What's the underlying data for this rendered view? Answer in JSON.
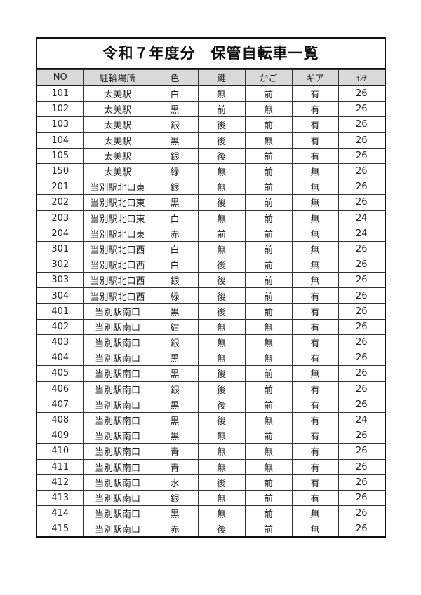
{
  "title": "令和７年度分　保管自転車一覧",
  "table": {
    "headers": [
      "NO",
      "駐輪場所",
      "色",
      "鍵",
      "かご",
      "ギア",
      "ｲﾝﾁ"
    ],
    "rows": [
      [
        "101",
        "太美駅",
        "白",
        "無",
        "前",
        "有",
        "26"
      ],
      [
        "102",
        "太美駅",
        "黒",
        "前",
        "無",
        "有",
        "26"
      ],
      [
        "103",
        "太美駅",
        "銀",
        "後",
        "前",
        "有",
        "26"
      ],
      [
        "104",
        "太美駅",
        "黒",
        "後",
        "無",
        "有",
        "26"
      ],
      [
        "105",
        "太美駅",
        "銀",
        "後",
        "前",
        "有",
        "26"
      ],
      [
        "150",
        "太美駅",
        "緑",
        "無",
        "前",
        "無",
        "26"
      ],
      [
        "201",
        "当別駅北口東",
        "銀",
        "無",
        "前",
        "無",
        "26"
      ],
      [
        "202",
        "当別駅北口東",
        "黒",
        "後",
        "前",
        "無",
        "26"
      ],
      [
        "203",
        "当別駅北口東",
        "白",
        "無",
        "前",
        "無",
        "24"
      ],
      [
        "204",
        "当別駅北口東",
        "赤",
        "前",
        "前",
        "無",
        "24"
      ],
      [
        "301",
        "当別駅北口西",
        "白",
        "無",
        "前",
        "無",
        "26"
      ],
      [
        "302",
        "当別駅北口西",
        "白",
        "後",
        "前",
        "無",
        "26"
      ],
      [
        "303",
        "当別駅北口西",
        "銀",
        "後",
        "前",
        "無",
        "26"
      ],
      [
        "304",
        "当別駅北口西",
        "緑",
        "後",
        "前",
        "有",
        "26"
      ],
      [
        "401",
        "当別駅南口",
        "黒",
        "後",
        "前",
        "有",
        "26"
      ],
      [
        "402",
        "当別駅南口",
        "紺",
        "無",
        "無",
        "有",
        "26"
      ],
      [
        "403",
        "当別駅南口",
        "銀",
        "無",
        "無",
        "有",
        "26"
      ],
      [
        "404",
        "当別駅南口",
        "黒",
        "無",
        "無",
        "有",
        "26"
      ],
      [
        "405",
        "当別駅南口",
        "黒",
        "後",
        "前",
        "無",
        "26"
      ],
      [
        "406",
        "当別駅南口",
        "銀",
        "後",
        "前",
        "有",
        "26"
      ],
      [
        "407",
        "当別駅南口",
        "黒",
        "後",
        "前",
        "有",
        "26"
      ],
      [
        "408",
        "当別駅南口",
        "黒",
        "後",
        "無",
        "有",
        "24"
      ],
      [
        "409",
        "当別駅南口",
        "黒",
        "無",
        "前",
        "有",
        "26"
      ],
      [
        "410",
        "当別駅南口",
        "青",
        "無",
        "無",
        "有",
        "26"
      ],
      [
        "411",
        "当別駅南口",
        "青",
        "無",
        "無",
        "有",
        "26"
      ],
      [
        "412",
        "当別駅南口",
        "水",
        "後",
        "前",
        "有",
        "26"
      ],
      [
        "413",
        "当別駅南口",
        "銀",
        "無",
        "前",
        "有",
        "26"
      ],
      [
        "414",
        "当別駅南口",
        "黒",
        "無",
        "前",
        "無",
        "26"
      ],
      [
        "415",
        "当別駅南口",
        "赤",
        "後",
        "前",
        "無",
        "26"
      ]
    ]
  },
  "colors": {
    "header_bg": "#d9d9d9",
    "border": "#111111"
  }
}
